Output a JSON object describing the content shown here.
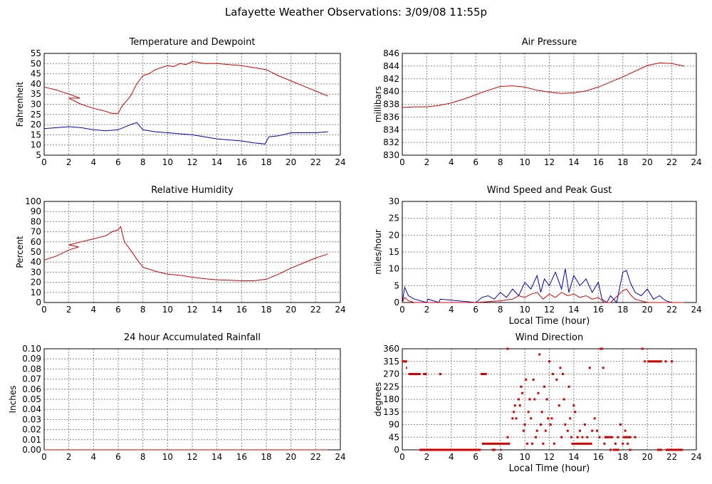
{
  "page": {
    "title": "Lafayette Weather Observations: 3/09/08 11:55p"
  },
  "colors": {
    "grid": "#888888",
    "axis": "#000000",
    "red": "#d40000",
    "blue": "#0000c0"
  },
  "chart_data": [
    {
      "id": "temp",
      "type": "line",
      "title": "Temperature and Dewpoint",
      "xlabel": "",
      "ylabel": "Fahrenheit",
      "xlim": [
        0,
        24
      ],
      "ylim": [
        5,
        55
      ],
      "xticks": [
        0,
        2,
        4,
        6,
        8,
        10,
        12,
        14,
        16,
        18,
        20,
        22,
        24
      ],
      "yticks": [
        5,
        10,
        15,
        20,
        25,
        30,
        35,
        40,
        45,
        50,
        55
      ],
      "grid": true,
      "series": [
        {
          "color": "#d40000",
          "x": [
            0,
            1,
            2,
            2.9,
            2,
            3,
            4,
            5,
            5.5,
            6,
            6.3,
            7,
            7.5,
            8,
            8.5,
            9,
            9.5,
            10,
            10.5,
            11,
            11.5,
            12,
            13,
            14,
            15,
            16,
            17,
            18,
            19,
            20,
            21,
            22,
            23
          ],
          "y": [
            38.5,
            37,
            35,
            33,
            33,
            30,
            28,
            26.5,
            25.5,
            25.5,
            29,
            34,
            40,
            44,
            45,
            47,
            48,
            49,
            48.5,
            50,
            49.5,
            51,
            50,
            50,
            49.5,
            49,
            48,
            47,
            44,
            41.5,
            39,
            36.5,
            34
          ]
        },
        {
          "color": "#0000c0",
          "x": [
            0,
            1,
            2,
            3,
            4,
            5,
            6,
            7,
            7.5,
            8,
            9,
            10,
            11,
            12,
            13,
            14,
            15,
            16,
            17,
            17.9,
            18.2,
            19,
            20,
            21,
            22,
            23
          ],
          "y": [
            18,
            18.5,
            19,
            18.5,
            17.5,
            17,
            17.5,
            20,
            21,
            17.5,
            16.5,
            16,
            15.5,
            15,
            14,
            13,
            12.5,
            12,
            11,
            10.5,
            14,
            14.5,
            16,
            16,
            16,
            16.5
          ]
        }
      ]
    },
    {
      "id": "pressure",
      "type": "line",
      "title": "Air Pressure",
      "xlabel": "",
      "ylabel": "millibars",
      "xlim": [
        0,
        24
      ],
      "ylim": [
        830,
        846
      ],
      "xticks": [
        0,
        2,
        4,
        6,
        8,
        10,
        12,
        14,
        16,
        18,
        20,
        22,
        24
      ],
      "yticks": [
        830,
        832,
        834,
        836,
        838,
        840,
        842,
        844,
        846
      ],
      "grid": true,
      "series": [
        {
          "color": "#d40000",
          "x": [
            0,
            1,
            2,
            3,
            4,
            5,
            6,
            7,
            8,
            9,
            10,
            11,
            12,
            13,
            14,
            15,
            16,
            17,
            18,
            19,
            20,
            21,
            22,
            23
          ],
          "y": [
            837.5,
            837.6,
            837.6,
            837.8,
            838.2,
            838.8,
            839.5,
            840.2,
            840.8,
            840.9,
            840.7,
            840.2,
            839.9,
            839.7,
            839.8,
            840.1,
            840.7,
            841.5,
            842.3,
            843.2,
            844.1,
            844.5,
            844.4,
            844
          ]
        }
      ]
    },
    {
      "id": "humidity",
      "type": "line",
      "title": "Relative Humidity",
      "xlabel": "",
      "ylabel": "Percent",
      "xlim": [
        0,
        24
      ],
      "ylim": [
        0,
        100
      ],
      "xticks": [
        0,
        2,
        4,
        6,
        8,
        10,
        12,
        14,
        16,
        18,
        20,
        22,
        24
      ],
      "yticks": [
        0,
        10,
        20,
        30,
        40,
        50,
        60,
        70,
        80,
        90,
        100
      ],
      "grid": true,
      "series": [
        {
          "color": "#d40000",
          "x": [
            0,
            1,
            2,
            2.8,
            2,
            3,
            4,
            5,
            5.5,
            6,
            6.2,
            6.5,
            7,
            7.5,
            8,
            9,
            10,
            11,
            12,
            13,
            14,
            15,
            16,
            17,
            18,
            19,
            20,
            21,
            22,
            23
          ],
          "y": [
            42,
            46,
            52,
            55,
            57,
            60,
            63,
            66,
            70,
            72,
            75,
            60,
            52,
            43,
            35,
            31,
            28,
            27,
            25,
            23.5,
            22.5,
            22,
            21.5,
            21.5,
            23,
            28,
            34,
            39,
            44,
            48
          ]
        }
      ]
    },
    {
      "id": "wind",
      "type": "line",
      "title": "Wind Speed and Peak Gust",
      "xlabel": "Local Time (hour)",
      "ylabel": "miles/hour",
      "xlim": [
        0,
        24
      ],
      "ylim": [
        0,
        30
      ],
      "xticks": [
        0,
        2,
        4,
        6,
        8,
        10,
        12,
        14,
        16,
        18,
        20,
        22,
        24
      ],
      "yticks": [
        0,
        5,
        10,
        15,
        20,
        25,
        30
      ],
      "grid": true,
      "series": [
        {
          "color": "#0000c0",
          "x": [
            0,
            0.2,
            0.5,
            1,
            2,
            2.1,
            3,
            3.1,
            6,
            6.5,
            7,
            7.5,
            8,
            8.5,
            9,
            9.5,
            10,
            10.5,
            11,
            11.3,
            11.6,
            12,
            12.5,
            13,
            13.3,
            13.6,
            14,
            14.5,
            15,
            15.5,
            16,
            16.3,
            16.7,
            17,
            17.5,
            18,
            18.3,
            18.6,
            19,
            19.5,
            20,
            20.5,
            21,
            21.5,
            22,
            23
          ],
          "y": [
            0,
            4.5,
            2,
            1,
            0,
            1,
            0,
            1,
            0,
            1.5,
            2,
            1,
            3,
            1.5,
            4,
            2,
            6,
            4,
            8,
            3,
            7,
            5,
            9,
            4,
            10,
            3,
            8,
            5,
            7,
            3,
            6,
            1,
            0,
            2,
            0,
            9,
            9.5,
            6,
            3,
            2,
            4,
            1,
            2,
            0.5,
            0,
            0
          ]
        },
        {
          "color": "#d40000",
          "x": [
            0,
            0.2,
            0.5,
            1,
            6,
            8,
            9,
            9.5,
            10,
            10.5,
            11,
            11.5,
            12,
            12.5,
            13,
            13.5,
            14,
            14.5,
            15,
            15.5,
            16,
            16.5,
            17,
            18,
            18.3,
            18.7,
            19,
            20,
            23
          ],
          "y": [
            0,
            1.5,
            0.5,
            0,
            0,
            0.5,
            1,
            2,
            1.5,
            2.5,
            3,
            1,
            2.5,
            1.5,
            3,
            2,
            2.5,
            1.5,
            2,
            1,
            1.5,
            0,
            0,
            3.5,
            4,
            2,
            1,
            0,
            0
          ]
        }
      ]
    },
    {
      "id": "rain",
      "type": "line",
      "title": "24 hour Accumulated Rainfall",
      "xlabel": "",
      "ylabel": "Inches",
      "xlim": [
        0,
        24
      ],
      "ylim": [
        0,
        0.1
      ],
      "xticks": [
        0,
        2,
        4,
        6,
        8,
        10,
        12,
        14,
        16,
        18,
        20,
        22,
        24
      ],
      "yticks": [
        "0.00",
        "0.01",
        "0.02",
        "0.03",
        "0.04",
        "0.05",
        "0.06",
        "0.07",
        "0.08",
        "0.09",
        "0.10"
      ],
      "grid": true,
      "series": [
        {
          "color": "#d40000",
          "x": [
            0,
            23
          ],
          "y": [
            0,
            0
          ]
        }
      ]
    },
    {
      "id": "winddir",
      "type": "scatter",
      "title": "Wind Direction",
      "xlabel": "Local Time (hour)",
      "ylabel": "degrees",
      "xlim": [
        0,
        24
      ],
      "ylim": [
        0,
        360
      ],
      "xticks": [
        0,
        2,
        4,
        6,
        8,
        10,
        12,
        14,
        16,
        18,
        20,
        22,
        24
      ],
      "yticks": [
        0,
        45,
        90,
        135,
        180,
        225,
        270,
        315,
        360
      ],
      "grid": true,
      "segments": [
        {
          "x1": 0,
          "x2": 0.4,
          "y": 315
        },
        {
          "x1": 0.3,
          "x2": 0.4,
          "y": 292
        },
        {
          "x1": 0.5,
          "x2": 1.5,
          "y": 270
        },
        {
          "x1": 1.7,
          "x2": 2.0,
          "y": 270
        },
        {
          "x1": 3.0,
          "x2": 3.2,
          "y": 270
        },
        {
          "x1": 1.4,
          "x2": 6.4,
          "y": 0
        },
        {
          "x1": 6.4,
          "x2": 6.9,
          "y": 270
        },
        {
          "x1": 6.5,
          "x2": 8.8,
          "y": 22
        },
        {
          "x1": 7.3,
          "x2": 7.6,
          "y": 0
        },
        {
          "x1": 8.0,
          "x2": 8.1,
          "y": 0
        },
        {
          "x1": 20.0,
          "x2": 21.2,
          "y": 315
        },
        {
          "x1": 20.8,
          "x2": 21.2,
          "y": 0
        },
        {
          "x1": 21.5,
          "x2": 22.9,
          "y": 0
        },
        {
          "x1": 17.2,
          "x2": 17.7,
          "y": 0
        },
        {
          "x1": 16.5,
          "x2": 17.2,
          "y": 45
        },
        {
          "x1": 18.0,
          "x2": 18.7,
          "y": 45
        },
        {
          "x1": 13.8,
          "x2": 15.5,
          "y": 22
        }
      ],
      "points": [
        {
          "x": 8.6,
          "y": 360
        },
        {
          "x": 8.6,
          "y": 45
        },
        {
          "x": 9.0,
          "y": 112
        },
        {
          "x": 9.1,
          "y": 135
        },
        {
          "x": 9.2,
          "y": 158
        },
        {
          "x": 9.3,
          "y": 112
        },
        {
          "x": 9.5,
          "y": 180
        },
        {
          "x": 9.6,
          "y": 158
        },
        {
          "x": 9.7,
          "y": 225
        },
        {
          "x": 9.8,
          "y": 202
        },
        {
          "x": 9.9,
          "y": 68
        },
        {
          "x": 10.0,
          "y": 90
        },
        {
          "x": 10.1,
          "y": 250
        },
        {
          "x": 10.2,
          "y": 22
        },
        {
          "x": 10.3,
          "y": 135
        },
        {
          "x": 10.4,
          "y": 180
        },
        {
          "x": 10.5,
          "y": 112
        },
        {
          "x": 10.6,
          "y": 22
        },
        {
          "x": 10.7,
          "y": 250
        },
        {
          "x": 10.8,
          "y": 180
        },
        {
          "x": 10.9,
          "y": 45
        },
        {
          "x": 11.0,
          "y": 68
        },
        {
          "x": 11.1,
          "y": 202
        },
        {
          "x": 11.2,
          "y": 340
        },
        {
          "x": 11.3,
          "y": 90
        },
        {
          "x": 11.4,
          "y": 135
        },
        {
          "x": 11.5,
          "y": 22
        },
        {
          "x": 11.6,
          "y": 225
        },
        {
          "x": 11.7,
          "y": 68
        },
        {
          "x": 11.8,
          "y": 180
        },
        {
          "x": 11.9,
          "y": 112
        },
        {
          "x": 12.0,
          "y": 315
        },
        {
          "x": 12.1,
          "y": 90
        },
        {
          "x": 12.2,
          "y": 112
        },
        {
          "x": 12.3,
          "y": 270
        },
        {
          "x": 12.4,
          "y": 22
        },
        {
          "x": 12.6,
          "y": 250
        },
        {
          "x": 12.8,
          "y": 158
        },
        {
          "x": 12.9,
          "y": 292
        },
        {
          "x": 13.0,
          "y": 45
        },
        {
          "x": 13.1,
          "y": 270
        },
        {
          "x": 13.2,
          "y": 180
        },
        {
          "x": 13.3,
          "y": 90
        },
        {
          "x": 13.5,
          "y": 68
        },
        {
          "x": 13.6,
          "y": 225
        },
        {
          "x": 13.7,
          "y": 112
        },
        {
          "x": 13.8,
          "y": 45
        },
        {
          "x": 14.0,
          "y": 158
        },
        {
          "x": 14.1,
          "y": 135
        },
        {
          "x": 14.3,
          "y": 45
        },
        {
          "x": 14.5,
          "y": 68
        },
        {
          "x": 14.7,
          "y": 45
        },
        {
          "x": 14.9,
          "y": 90
        },
        {
          "x": 15.1,
          "y": 45
        },
        {
          "x": 15.3,
          "y": 292
        },
        {
          "x": 15.5,
          "y": 68
        },
        {
          "x": 15.7,
          "y": 112
        },
        {
          "x": 15.9,
          "y": 68
        },
        {
          "x": 16.1,
          "y": 45
        },
        {
          "x": 16.2,
          "y": 360
        },
        {
          "x": 16.3,
          "y": 360
        },
        {
          "x": 16.4,
          "y": 292
        },
        {
          "x": 16.5,
          "y": 22
        },
        {
          "x": 16.6,
          "y": 45
        },
        {
          "x": 17.0,
          "y": 0
        },
        {
          "x": 17.4,
          "y": 22
        },
        {
          "x": 17.6,
          "y": 45
        },
        {
          "x": 17.8,
          "y": 90
        },
        {
          "x": 18.0,
          "y": 22
        },
        {
          "x": 18.2,
          "y": 68
        },
        {
          "x": 18.4,
          "y": 22
        },
        {
          "x": 18.6,
          "y": 0
        },
        {
          "x": 19.0,
          "y": 45
        },
        {
          "x": 19.6,
          "y": 360
        },
        {
          "x": 19.8,
          "y": 315
        },
        {
          "x": 21.5,
          "y": 315
        },
        {
          "x": 22.0,
          "y": 315
        }
      ]
    }
  ]
}
